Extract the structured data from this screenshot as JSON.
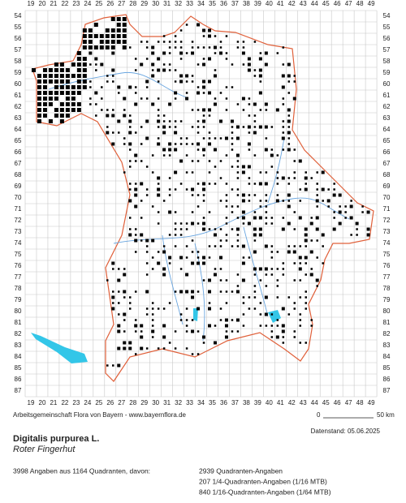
{
  "columns": [
    19,
    20,
    21,
    22,
    23,
    24,
    25,
    26,
    27,
    28,
    29,
    30,
    31,
    32,
    33,
    34,
    35,
    36,
    37,
    38,
    39,
    40,
    41,
    42,
    43,
    44,
    45,
    46,
    47,
    48,
    49
  ],
  "rows": [
    54,
    55,
    56,
    57,
    58,
    59,
    60,
    61,
    62,
    63,
    64,
    65,
    66,
    67,
    68,
    69,
    70,
    71,
    72,
    73,
    74,
    75,
    76,
    77,
    78,
    79,
    80,
    81,
    82,
    83,
    84,
    85,
    86,
    87
  ],
  "credit": "Arbeitsgemeinschaft Flora von Bayern - www.bayernflora.de",
  "scale": {
    "start": "0",
    "end": "50 km"
  },
  "date": "Datenstand: 05.06.2025",
  "species": {
    "name": "Digitalis purpurea L.",
    "common_name": "Roter Fingerhut"
  },
  "summary": {
    "total": "3998 Angaben aus 1164 Quadranten, davon:",
    "breakdown": [
      "2939 Quadranten-Angaben",
      "207 1/4-Quadranten-Angaben (1/16 MTB)",
      "840 1/16-Quadranten-Angaben (1/64 MTB)"
    ]
  }
}
